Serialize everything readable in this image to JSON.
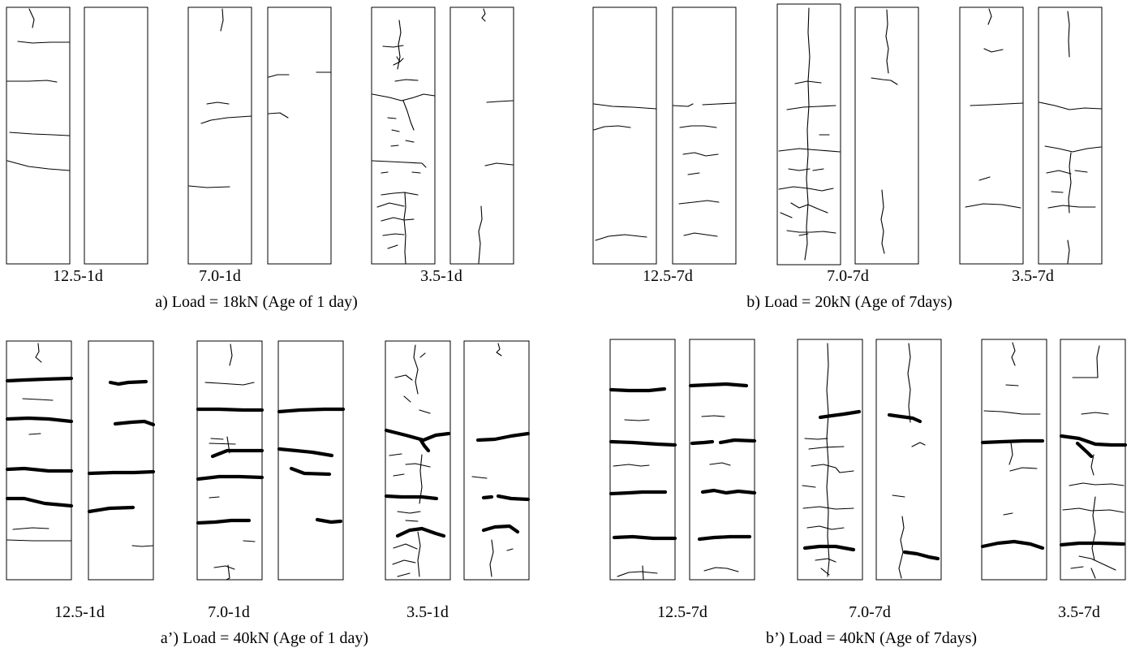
{
  "panels": [
    {
      "id": "a",
      "caption": "a) Load = 18kN (Age of 1 day)",
      "labels": [
        "12.5-1d",
        "7.0-1d",
        "3.5-1d"
      ]
    },
    {
      "id": "b",
      "caption": "b) Load = 20kN (Age of 7days)",
      "labels": [
        "12.5-7d",
        "7.0-7d",
        "3.5-7d"
      ]
    },
    {
      "id": "a_prime",
      "caption": "a’) Load = 40kN (Age of 1 day)",
      "labels": [
        "12.5-1d",
        "7.0-1d",
        "3.5-1d"
      ]
    },
    {
      "id": "b_prime",
      "caption": "b’) Load = 40kN (Age of 7days)",
      "labels": [
        "12.5-7d",
        "7.0-7d",
        "3.5-7d"
      ]
    }
  ]
}
